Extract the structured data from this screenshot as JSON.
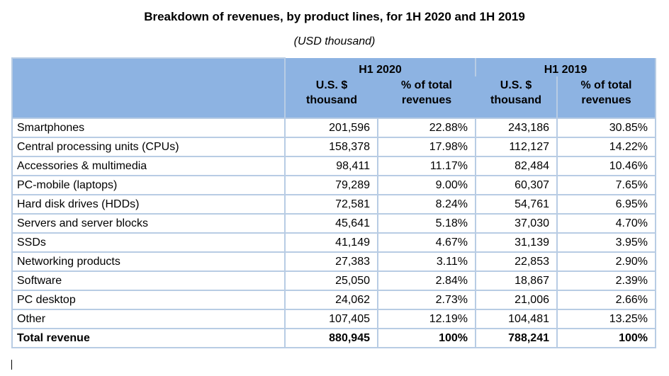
{
  "document": {
    "title": "Breakdown of revenues, by product lines, for 1H 2020 and 1H 2019",
    "subtitle": "(USD thousand)"
  },
  "table": {
    "groups": [
      "H1 2020",
      "H1 2019"
    ],
    "subheaders": {
      "value_line1": "U.S. $",
      "value_line2": "thousand",
      "pct_line1": "% of total",
      "pct_line2": "revenues"
    },
    "rows": [
      {
        "name": "Smartphones",
        "v2020": "201,596",
        "p2020": "22.88%",
        "v2019": "243,186",
        "p2019": "30.85%"
      },
      {
        "name": "Central processing units (CPUs)",
        "v2020": "158,378",
        "p2020": "17.98%",
        "v2019": "112,127",
        "p2019": "14.22%"
      },
      {
        "name": "Accessories & multimedia",
        "v2020": "98,411",
        "p2020": "11.17%",
        "v2019": "82,484",
        "p2019": "10.46%"
      },
      {
        "name": "PC-mobile (laptops)",
        "v2020": "79,289",
        "p2020": "9.00%",
        "v2019": "60,307",
        "p2019": "7.65%"
      },
      {
        "name": "Hard disk drives (HDDs)",
        "v2020": "72,581",
        "p2020": "8.24%",
        "v2019": "54,761",
        "p2019": "6.95%"
      },
      {
        "name": "Servers and server blocks",
        "v2020": "45,641",
        "p2020": "5.18%",
        "v2019": "37,030",
        "p2019": "4.70%"
      },
      {
        "name": "SSDs",
        "v2020": "41,149",
        "p2020": "4.67%",
        "v2019": "31,139",
        "p2019": "3.95%"
      },
      {
        "name": "Networking products",
        "v2020": "27,383",
        "p2020": "3.11%",
        "v2019": "22,853",
        "p2019": "2.90%"
      },
      {
        "name": "Software",
        "v2020": "25,050",
        "p2020": "2.84%",
        "v2019": "18,867",
        "p2019": "2.39%"
      },
      {
        "name": "PC desktop",
        "v2020": "24,062",
        "p2020": "2.73%",
        "v2019": "21,006",
        "p2019": "2.66%"
      },
      {
        "name": "Other",
        "v2020": "107,405",
        "p2020": "12.19%",
        "v2019": "104,481",
        "p2019": "13.25%"
      }
    ],
    "total": {
      "name": "Total revenue",
      "v2020": "880,945",
      "p2020": "100%",
      "v2019": "788,241",
      "p2019": "100%"
    }
  },
  "colors": {
    "header_fill": "#8db3e2",
    "grid_line": "#b8cce4"
  }
}
